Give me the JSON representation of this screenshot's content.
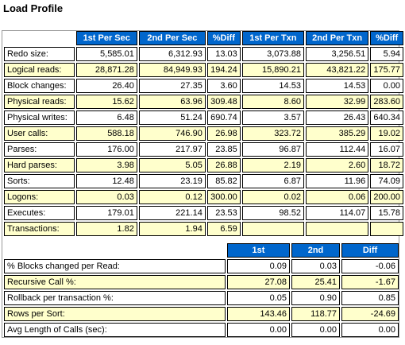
{
  "title": "Load Profile",
  "colors": {
    "header_bg": "#0066cc",
    "header_text": "#ffffff",
    "alt_row_bg": "#ffffcc",
    "row_bg": "#ffffff"
  },
  "table1": {
    "headers": [
      "1st Per Sec",
      "2nd Per Sec",
      "%Diff",
      "1st Per Txn",
      "2nd Per Txn",
      "%Diff"
    ],
    "rows": [
      {
        "label": "Redo size:",
        "values": [
          "5,585.01",
          "6,312.93",
          "13.03",
          "3,073.88",
          "3,256.51",
          "5.94"
        ]
      },
      {
        "label": "Logical reads:",
        "values": [
          "28,871.28",
          "84,949.93",
          "194.24",
          "15,890.21",
          "43,821.22",
          "175.77"
        ]
      },
      {
        "label": "Block changes:",
        "values": [
          "26.40",
          "27.35",
          "3.60",
          "14.53",
          "14.53",
          "0.00"
        ]
      },
      {
        "label": "Physical reads:",
        "values": [
          "15.62",
          "63.96",
          "309.48",
          "8.60",
          "32.99",
          "283.60"
        ]
      },
      {
        "label": "Physical writes:",
        "values": [
          "6.48",
          "51.24",
          "690.74",
          "3.57",
          "26.43",
          "640.34"
        ]
      },
      {
        "label": "User calls:",
        "values": [
          "588.18",
          "746.90",
          "26.98",
          "323.72",
          "385.29",
          "19.02"
        ]
      },
      {
        "label": "Parses:",
        "values": [
          "176.00",
          "217.97",
          "23.85",
          "96.87",
          "112.44",
          "16.07"
        ]
      },
      {
        "label": "Hard parses:",
        "values": [
          "3.98",
          "5.05",
          "26.88",
          "2.19",
          "2.60",
          "18.72"
        ]
      },
      {
        "label": "Sorts:",
        "values": [
          "12.48",
          "23.19",
          "85.82",
          "6.87",
          "11.96",
          "74.09"
        ]
      },
      {
        "label": "Logons:",
        "values": [
          "0.03",
          "0.12",
          "300.00",
          "0.02",
          "0.06",
          "200.00"
        ]
      },
      {
        "label": "Executes:",
        "values": [
          "179.01",
          "221.14",
          "23.53",
          "98.52",
          "114.07",
          "15.78"
        ]
      },
      {
        "label": "Transactions:",
        "values": [
          "1.82",
          "1.94",
          "6.59",
          "",
          "",
          ""
        ]
      }
    ]
  },
  "table2": {
    "headers": [
      "1st",
      "2nd",
      "Diff"
    ],
    "rows": [
      {
        "label": "% Blocks changed per Read:",
        "values": [
          "0.09",
          "0.03",
          "-0.06"
        ]
      },
      {
        "label": "Recursive Call %:",
        "values": [
          "27.08",
          "25.41",
          "-1.67"
        ]
      },
      {
        "label": "Rollback per transaction %:",
        "values": [
          "0.05",
          "0.90",
          "0.85"
        ]
      },
      {
        "label": "Rows per Sort:",
        "values": [
          "143.46",
          "118.77",
          "-24.69"
        ]
      },
      {
        "label": "Avg Length of Calls (sec):",
        "values": [
          "0.00",
          "0.00",
          "0.00"
        ]
      }
    ]
  }
}
